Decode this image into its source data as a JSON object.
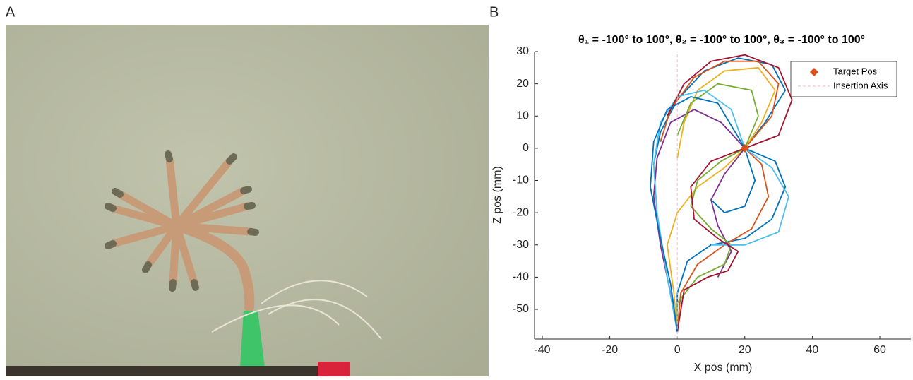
{
  "panel_labels": [
    "A",
    "B"
  ],
  "chart_data": {
    "type": "line",
    "title": "θ₁ = -100° to 100°, θ₂ = -100° to 100°, θ₃ = -100° to 100°",
    "x_label": "X pos (mm)",
    "y_label": "Z pos (mm)",
    "xlim": [
      -42.3,
      69.2
    ],
    "ylim": [
      -59.2,
      30
    ],
    "xticks": [
      -40,
      -20,
      0,
      20,
      40,
      60
    ],
    "yticks": [
      -50,
      -40,
      -30,
      -20,
      -10,
      0,
      10,
      20,
      30
    ],
    "legend": "top-right",
    "series": [
      {
        "color": "#0072bd",
        "x": [
          0,
          0,
          3,
          10,
          20,
          28,
          32,
          29,
          20,
          26,
          32,
          28,
          18,
          8,
          0,
          -5,
          -7
        ],
        "y": [
          -57,
          -45,
          -35,
          -30,
          -28,
          -22,
          -12,
          -4,
          0,
          8,
          18,
          26,
          28,
          24,
          15,
          5,
          -5
        ]
      },
      {
        "color": "#d95319",
        "x": [
          0,
          1,
          6,
          14,
          22,
          27,
          25,
          20,
          28,
          30,
          24,
          14,
          5,
          -2,
          -5
        ],
        "y": [
          -57,
          -45,
          -36,
          -30,
          -25,
          -15,
          -5,
          0,
          10,
          20,
          27,
          27,
          22,
          12,
          2
        ]
      },
      {
        "color": "#edb120",
        "x": [
          0,
          -1,
          -3,
          0,
          6,
          14,
          20,
          25,
          29,
          24,
          14,
          6,
          2,
          0
        ],
        "y": [
          -57,
          -45,
          -30,
          -20,
          -12,
          -6,
          0,
          8,
          18,
          25,
          24,
          18,
          8,
          -3
        ]
      },
      {
        "color": "#7e2f8e",
        "x": [
          0,
          -2,
          -5,
          -7,
          -6,
          -2,
          5,
          13,
          20,
          14,
          10,
          12,
          16,
          12
        ],
        "y": [
          -57,
          -45,
          -30,
          -15,
          -3,
          8,
          12,
          8,
          0,
          -8,
          -16,
          -24,
          -32,
          -40
        ]
      },
      {
        "color": "#77ac30",
        "x": [
          0,
          0,
          6,
          14,
          16,
          10,
          4,
          6,
          13,
          20,
          24,
          22,
          12,
          4,
          0
        ],
        "y": [
          -57,
          -48,
          -40,
          -36,
          -30,
          -25,
          -18,
          -10,
          -4,
          0,
          10,
          18,
          20,
          14,
          4
        ]
      },
      {
        "color": "#4dbeee",
        "x": [
          0,
          -3,
          -6,
          -7,
          -5,
          0,
          8,
          16,
          20,
          28,
          33,
          30,
          20,
          10
        ],
        "y": [
          -57,
          -40,
          -20,
          -5,
          8,
          16,
          18,
          12,
          0,
          -6,
          -15,
          -26,
          -30,
          -30
        ]
      },
      {
        "color": "#a2142f",
        "x": [
          0,
          2,
          9,
          15,
          18,
          12,
          5,
          4,
          10,
          20,
          30,
          34,
          30,
          20,
          10,
          2,
          -3
        ],
        "y": [
          -57,
          -44,
          -40,
          -38,
          -32,
          -28,
          -22,
          -12,
          -4,
          0,
          4,
          15,
          25,
          29,
          27,
          20,
          10
        ]
      },
      {
        "color": "#0072bd",
        "x": [
          0,
          -2,
          -5,
          -8,
          -7,
          -3,
          4,
          12,
          20,
          23,
          20,
          14,
          10
        ],
        "y": [
          -57,
          -42,
          -28,
          -12,
          2,
          12,
          16,
          14,
          0,
          -10,
          -18,
          -20,
          -16
        ]
      },
      {
        "name": "Target Pos",
        "color": "#d95319",
        "marker": "diamond",
        "x": [
          20
        ],
        "y": [
          0
        ]
      },
      {
        "name": "Insertion Axis",
        "color": "#ffb6c1",
        "dashed": true,
        "x": [
          0,
          0
        ],
        "y": [
          -59.2,
          30
        ]
      }
    ]
  }
}
